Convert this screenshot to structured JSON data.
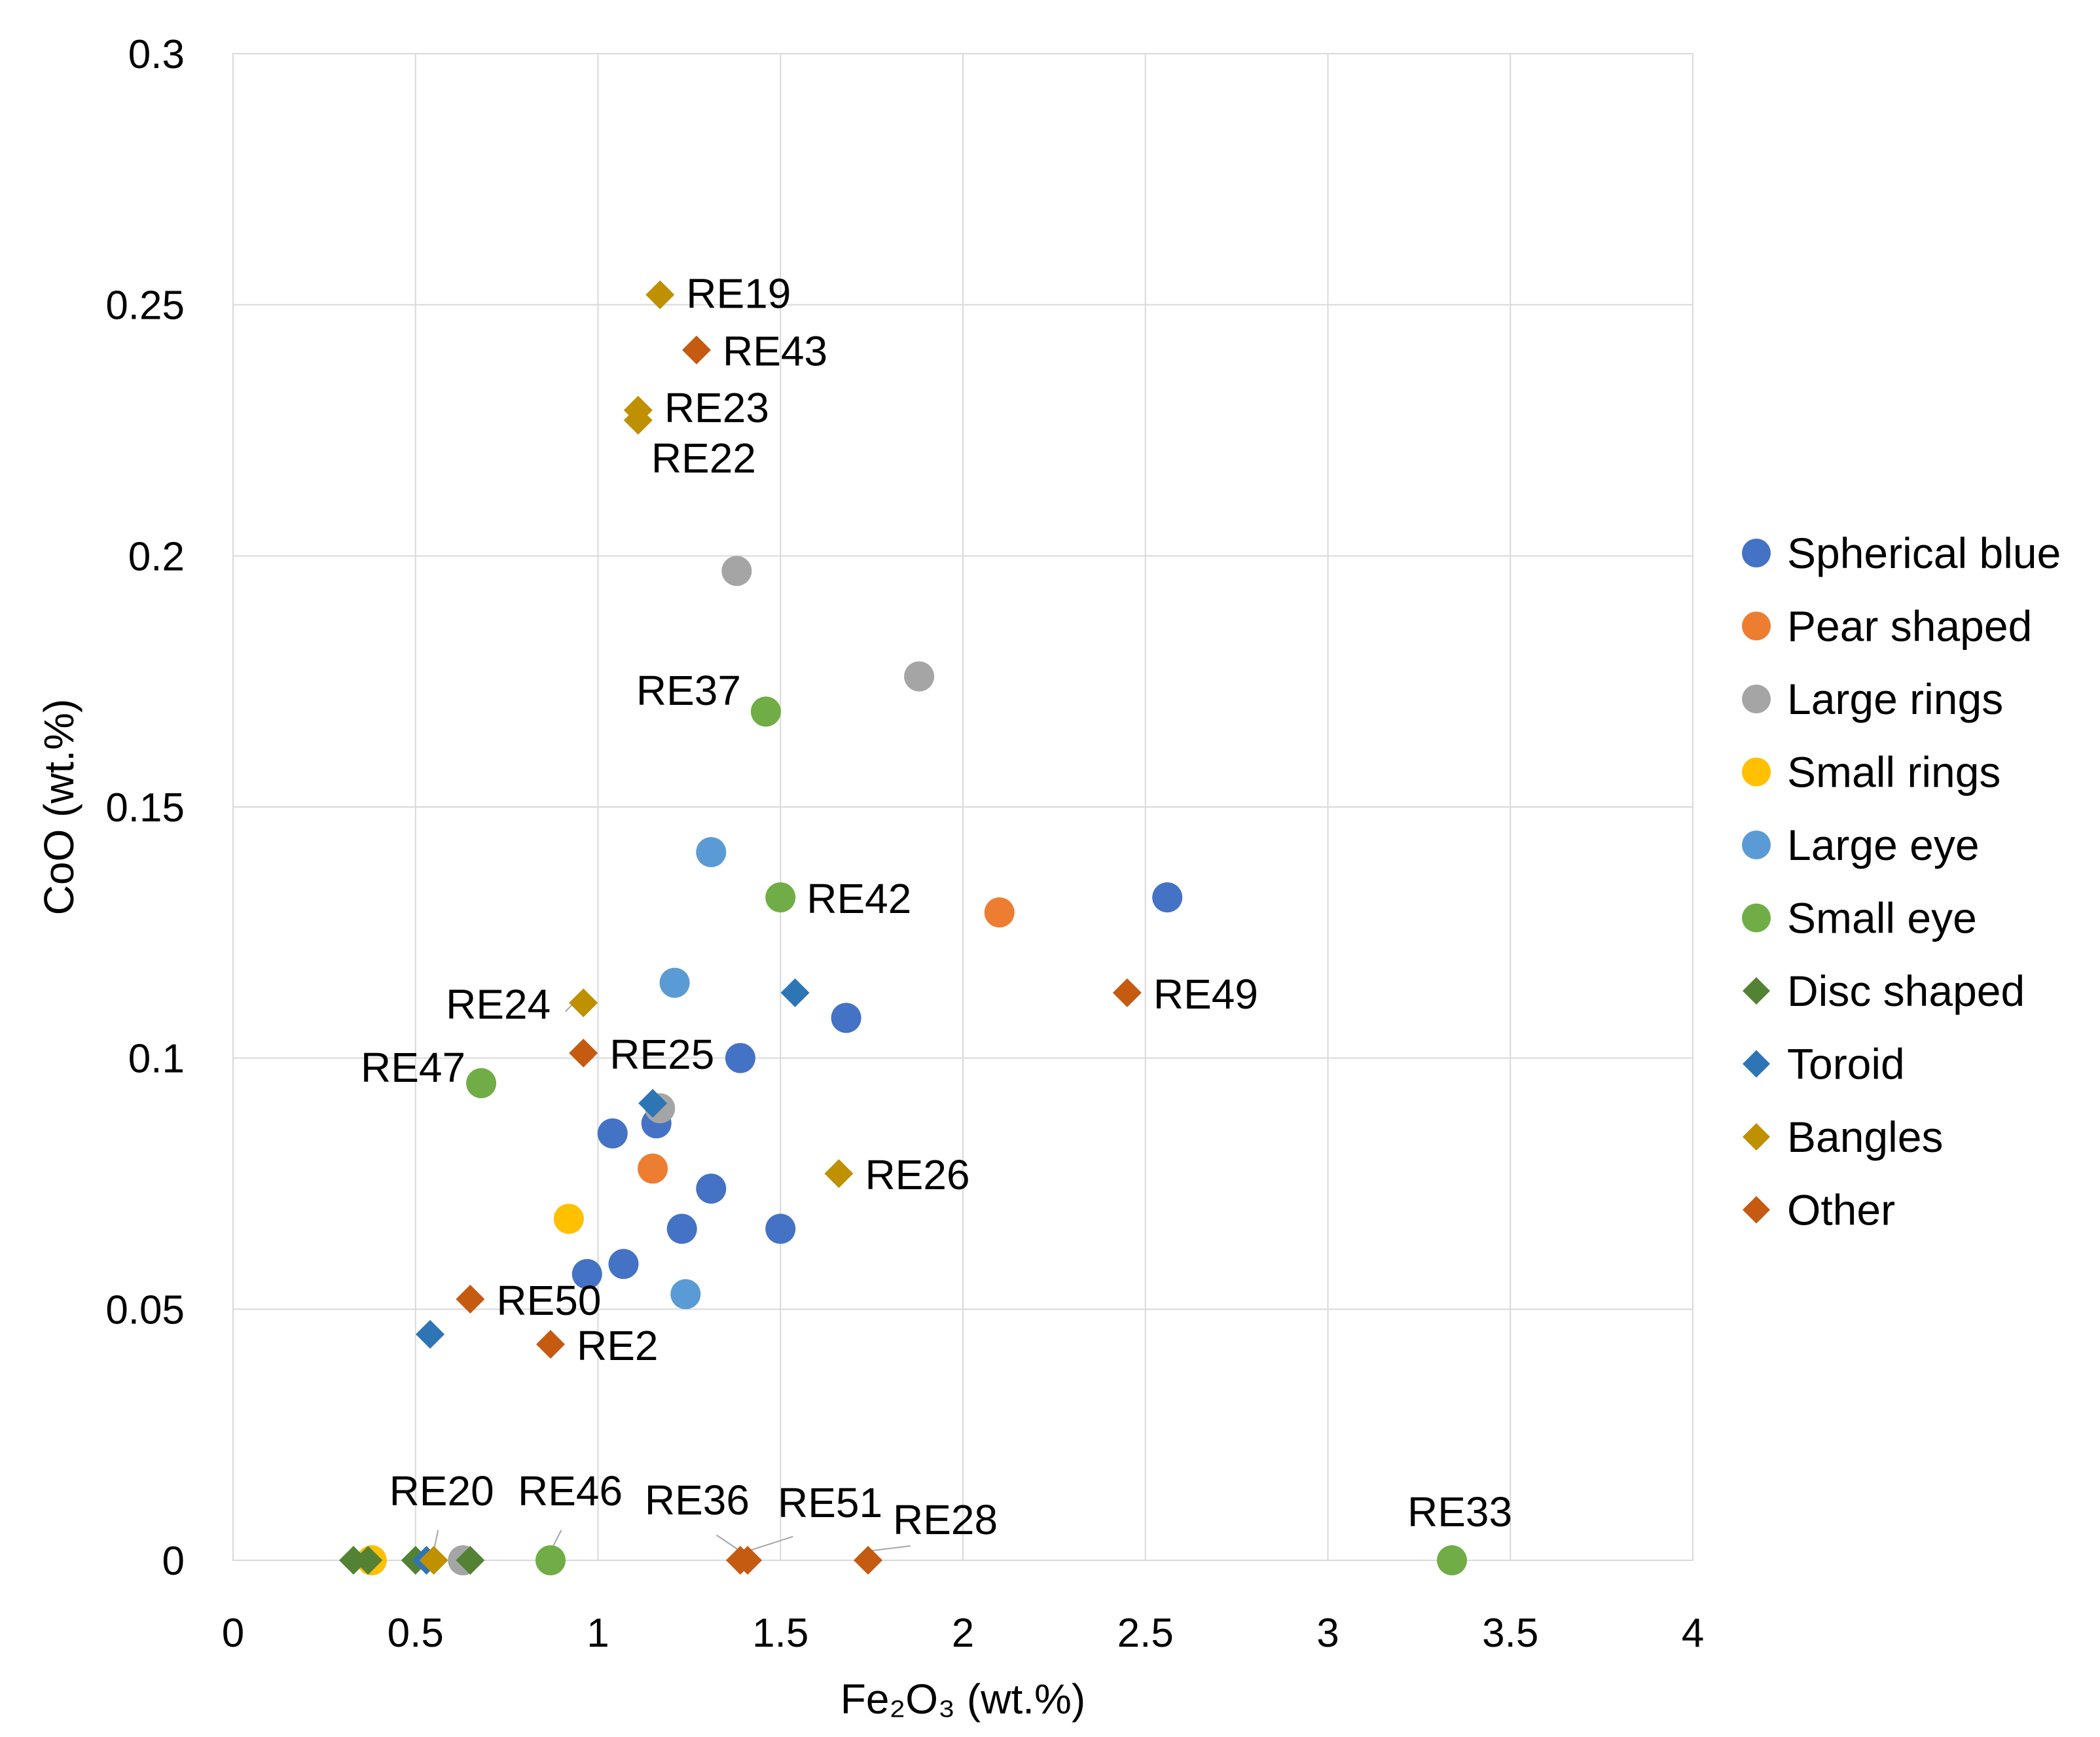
{
  "chart_data": {
    "type": "scatter",
    "title": "",
    "xlabel": "Fe₂O₃ (wt.%)",
    "ylabel": "CoO (wt.%)",
    "xlim": [
      0,
      4
    ],
    "ylim": [
      0,
      0.3
    ],
    "x_ticks": [
      {
        "value": 0,
        "label": "0"
      },
      {
        "value": 0.5,
        "label": "0.5"
      },
      {
        "value": 1,
        "label": "1"
      },
      {
        "value": 1.5,
        "label": "1.5"
      },
      {
        "value": 2,
        "label": "2"
      },
      {
        "value": 2.5,
        "label": "2.5"
      },
      {
        "value": 3,
        "label": "3"
      },
      {
        "value": 3.5,
        "label": "3.5"
      },
      {
        "value": 4,
        "label": "4"
      }
    ],
    "y_ticks": [
      {
        "value": 0,
        "label": "0"
      },
      {
        "value": 0.05,
        "label": "0.05"
      },
      {
        "value": 0.1,
        "label": "0.1"
      },
      {
        "value": 0.15,
        "label": "0.15"
      },
      {
        "value": 0.2,
        "label": "0.2"
      },
      {
        "value": 0.25,
        "label": "0.25"
      },
      {
        "value": 0.3,
        "label": "0.3"
      }
    ],
    "grid": true,
    "legend_position": "right",
    "series": [
      {
        "name": "Spherical blue",
        "marker": "circle",
        "color": "#4472c4",
        "points": [
          {
            "x": 2.56,
            "y": 0.132
          },
          {
            "x": 1.68,
            "y": 0.108
          },
          {
            "x": 1.39,
            "y": 0.1
          },
          {
            "x": 1.04,
            "y": 0.085
          },
          {
            "x": 1.16,
            "y": 0.087
          },
          {
            "x": 1.31,
            "y": 0.074
          },
          {
            "x": 1.23,
            "y": 0.066
          },
          {
            "x": 1.5,
            "y": 0.066
          },
          {
            "x": 1.07,
            "y": 0.059
          },
          {
            "x": 0.97,
            "y": 0.057
          }
        ]
      },
      {
        "name": "Pear shaped",
        "marker": "circle",
        "color": "#ed7d31",
        "points": [
          {
            "x": 2.1,
            "y": 0.129
          },
          {
            "x": 1.15,
            "y": 0.078
          }
        ]
      },
      {
        "name": "Large rings",
        "marker": "circle",
        "color": "#a5a5a5",
        "points": [
          {
            "x": 1.38,
            "y": 0.197
          },
          {
            "x": 1.88,
            "y": 0.176
          },
          {
            "x": 1.17,
            "y": 0.09
          },
          {
            "x": 0.63,
            "y": 0
          }
        ]
      },
      {
        "name": "Small rings",
        "marker": "circle",
        "color": "#ffc000",
        "points": [
          {
            "x": 0.92,
            "y": 0.068
          },
          {
            "x": 0.38,
            "y": 0
          }
        ]
      },
      {
        "name": "Large eye",
        "marker": "circle",
        "color": "#5b9bd5",
        "points": [
          {
            "x": 1.31,
            "y": 0.141
          },
          {
            "x": 1.21,
            "y": 0.115
          },
          {
            "x": 1.24,
            "y": 0.053
          }
        ]
      },
      {
        "name": "Small eye",
        "marker": "circle",
        "color": "#70ad47",
        "points": [
          {
            "x": 1.46,
            "y": 0.169,
            "label": "RE37"
          },
          {
            "x": 1.5,
            "y": 0.132,
            "label": "RE42"
          },
          {
            "x": 0.68,
            "y": 0.095,
            "label": "RE47"
          },
          {
            "x": 0.87,
            "y": 0,
            "label": "RE46"
          },
          {
            "x": 3.34,
            "y": 0,
            "label": "RE33"
          }
        ]
      },
      {
        "name": "Disc shaped",
        "marker": "diamond",
        "color": "#548235",
        "points": [
          {
            "x": 0.33,
            "y": 0
          },
          {
            "x": 0.37,
            "y": 0
          },
          {
            "x": 0.5,
            "y": 0
          },
          {
            "x": 0.65,
            "y": 0
          }
        ]
      },
      {
        "name": "Toroid",
        "marker": "diamond",
        "color": "#2e75b6",
        "points": [
          {
            "x": 1.54,
            "y": 0.113
          },
          {
            "x": 1.15,
            "y": 0.091
          },
          {
            "x": 0.54,
            "y": 0.045
          },
          {
            "x": 0.53,
            "y": 0
          }
        ]
      },
      {
        "name": "Bangles",
        "marker": "diamond",
        "color": "#bf9000",
        "points": [
          {
            "x": 1.17,
            "y": 0.252,
            "label": "RE19"
          },
          {
            "x": 1.11,
            "y": 0.229,
            "label": "RE23"
          },
          {
            "x": 1.11,
            "y": 0.227,
            "label": "RE22"
          },
          {
            "x": 0.96,
            "y": 0.111,
            "label": "RE24"
          },
          {
            "x": 1.66,
            "y": 0.077,
            "label": "RE26"
          },
          {
            "x": 0.55,
            "y": 0,
            "label": "RE20"
          }
        ]
      },
      {
        "name": "Other",
        "marker": "diamond",
        "color": "#c55a11",
        "points": [
          {
            "x": 1.27,
            "y": 0.241,
            "label": "RE43"
          },
          {
            "x": 2.45,
            "y": 0.113,
            "label": "RE49"
          },
          {
            "x": 0.96,
            "y": 0.101,
            "label": "RE25"
          },
          {
            "x": 0.65,
            "y": 0.052,
            "label": "RE50"
          },
          {
            "x": 0.87,
            "y": 0.043,
            "label": "RE2"
          },
          {
            "x": 1.39,
            "y": 0,
            "label": "RE36"
          },
          {
            "x": 1.41,
            "y": 0,
            "label": "RE51"
          },
          {
            "x": 1.74,
            "y": 0,
            "label": "RE28"
          }
        ]
      }
    ]
  }
}
